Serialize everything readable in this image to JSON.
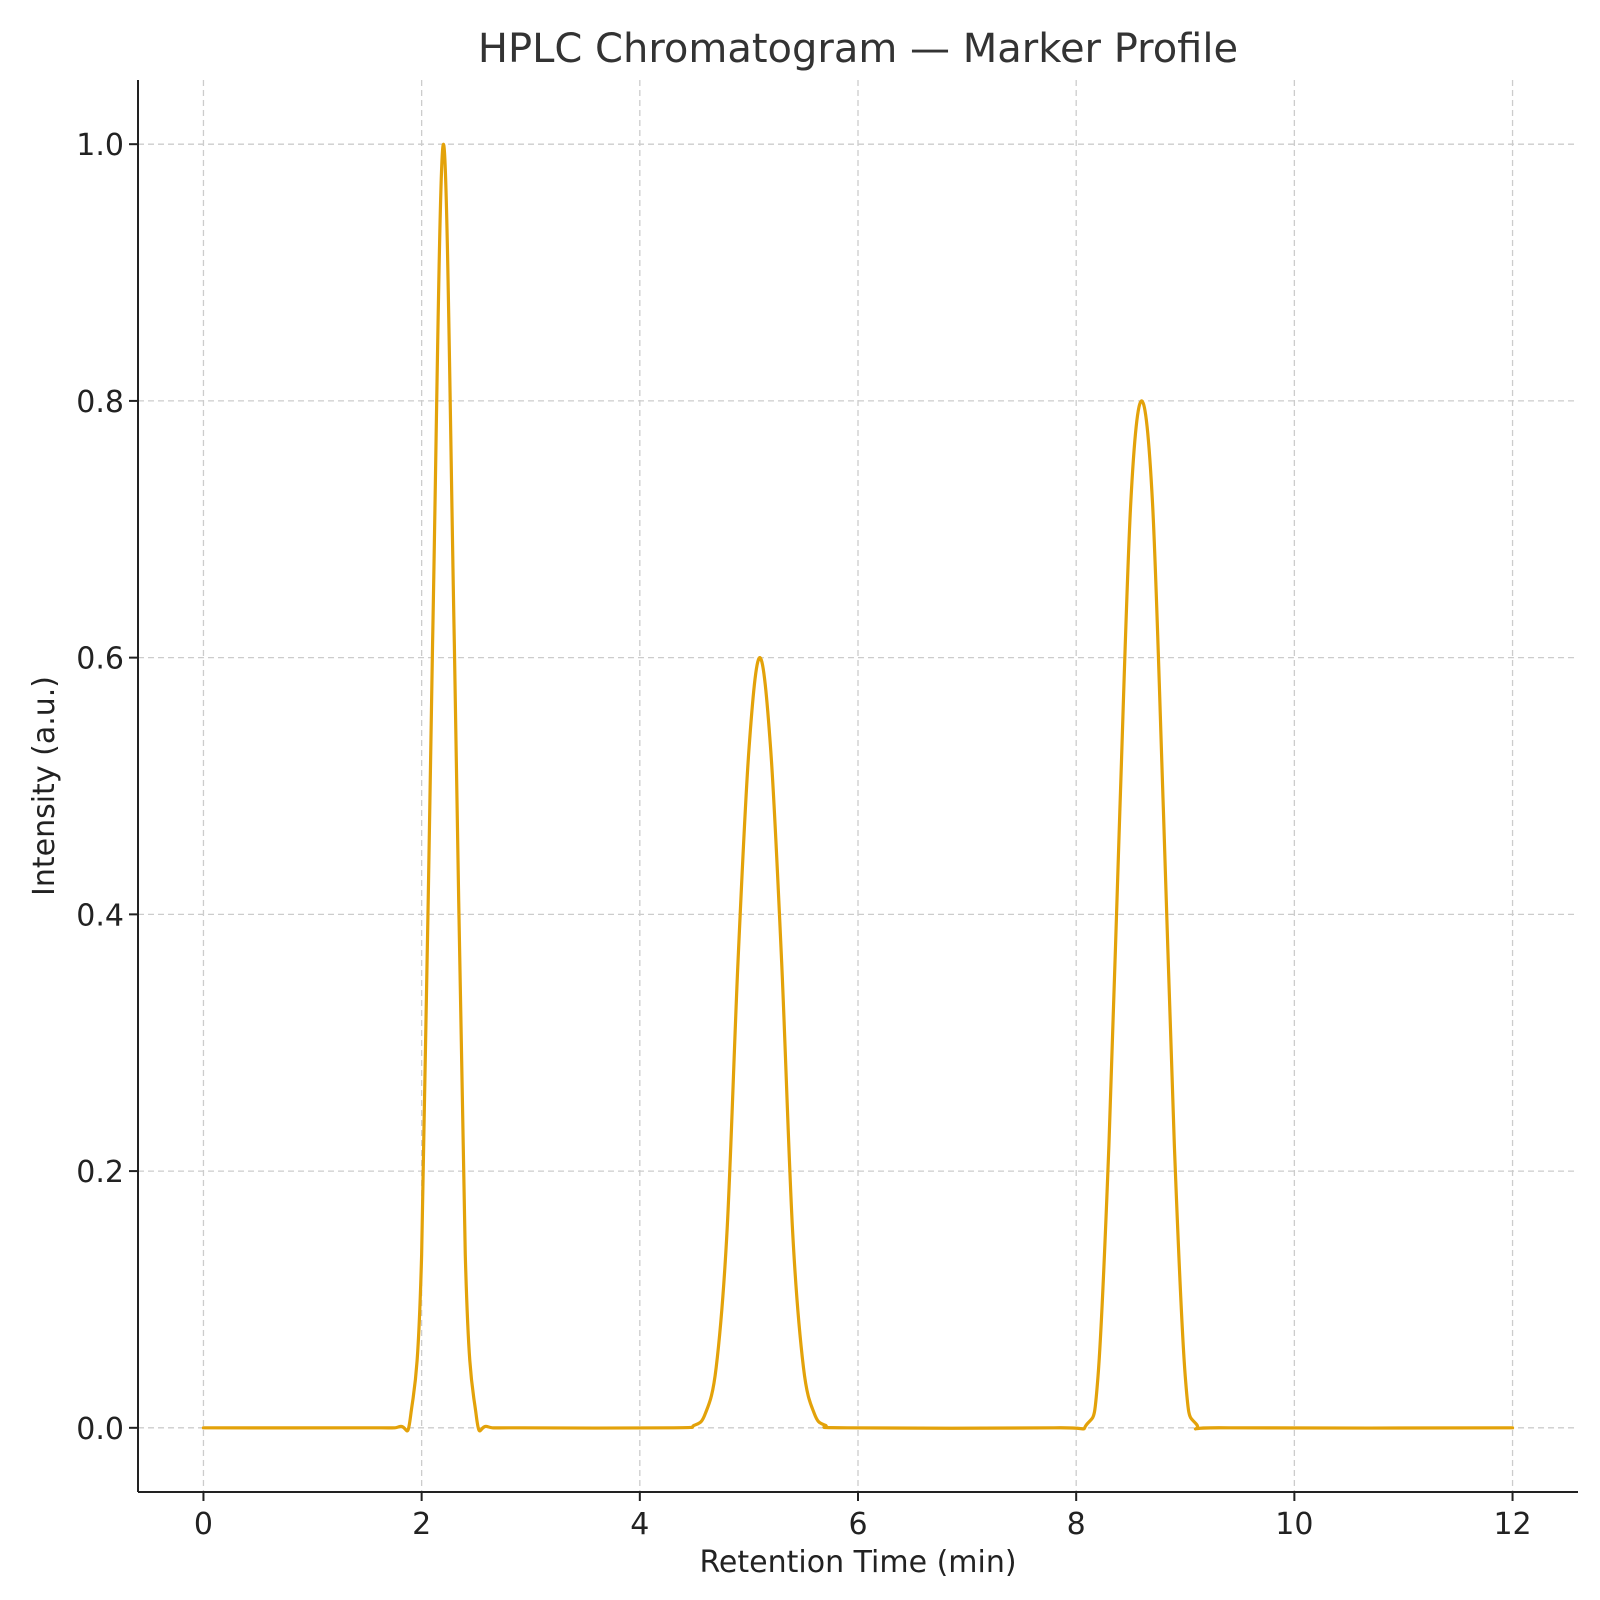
{
  "chart_data": {
    "type": "line",
    "title": "HPLC Chromatogram — Marker Profile",
    "xlabel": "Retention Time (min)",
    "ylabel": "Intensity (a.u.)",
    "xlim": [
      -0.6,
      12.6
    ],
    "ylim": [
      -0.05,
      1.05
    ],
    "x_ticks": [
      0,
      2,
      4,
      6,
      8,
      10,
      12
    ],
    "x_tick_labels": [
      "0",
      "2",
      "4",
      "6",
      "8",
      "10",
      "12"
    ],
    "y_ticks": [
      0.0,
      0.2,
      0.4,
      0.6,
      0.8,
      1.0
    ],
    "y_tick_labels": [
      "0.0",
      "0.2",
      "0.4",
      "0.6",
      "0.8",
      "1.0"
    ],
    "grid": true,
    "line_color": "#E3A20A",
    "series": [
      {
        "x": [
          0,
          1.5,
          1.8,
          1.9,
          2.0,
          2.1,
          2.2,
          2.3,
          2.4,
          2.5,
          2.6,
          2.9,
          4.3,
          4.5,
          4.6,
          4.7,
          4.8,
          4.9,
          5.0,
          5.1,
          5.2,
          5.3,
          5.4,
          5.5,
          5.6,
          5.7,
          5.9,
          7.8,
          8.1,
          8.2,
          8.3,
          8.4,
          8.5,
          8.6,
          8.7,
          8.8,
          8.9,
          9.0,
          9.1,
          9.4,
          12
        ],
        "y": [
          0,
          0,
          0.001,
          0.01,
          0.135,
          0.61,
          1.0,
          0.61,
          0.135,
          0.01,
          0.001,
          0,
          0,
          0.002,
          0.011,
          0.047,
          0.154,
          0.363,
          0.528,
          0.6,
          0.528,
          0.363,
          0.154,
          0.047,
          0.011,
          0.002,
          0,
          0,
          0.003,
          0.04,
          0.22,
          0.48,
          0.72,
          0.8,
          0.72,
          0.48,
          0.22,
          0.04,
          0.003,
          0,
          0
        ]
      }
    ]
  }
}
